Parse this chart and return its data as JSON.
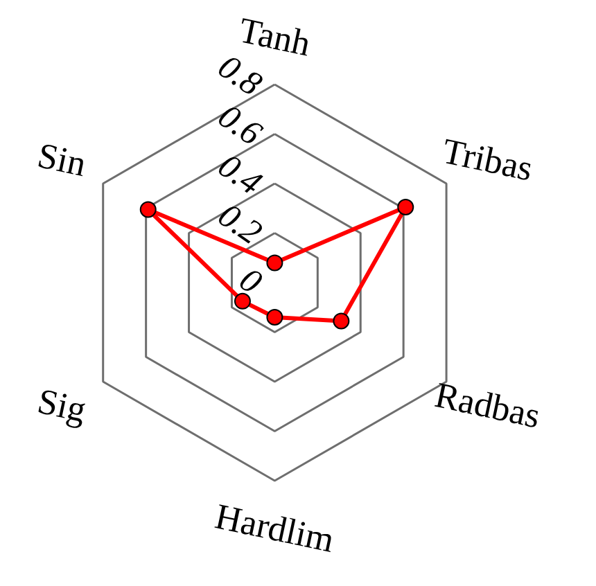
{
  "chart_data": {
    "type": "radar",
    "categories": [
      "Tanh",
      "Tribas",
      "Radbas",
      "Hardlim",
      "Sig",
      "Sin"
    ],
    "series": [
      {
        "color": "#ff0000",
        "values": [
          0.08,
          0.61,
          0.31,
          0.14,
          0.15,
          0.59
        ]
      }
    ],
    "ylim": [
      0,
      0.8
    ],
    "yticks": [
      0,
      0.2,
      0.4,
      0.6,
      0.8
    ],
    "grid": true,
    "marker": "circle",
    "line_style": "solid"
  }
}
